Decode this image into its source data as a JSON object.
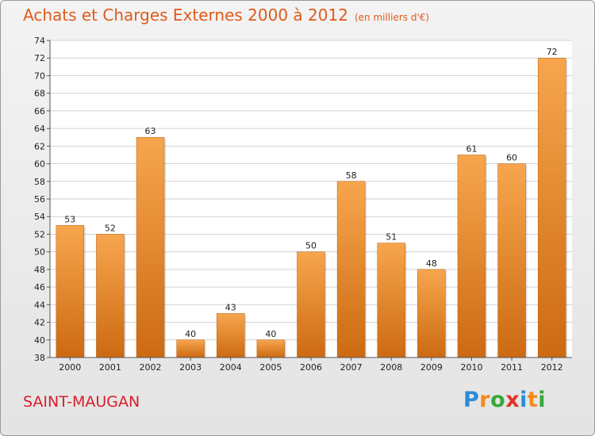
{
  "header": {
    "title": "Achats et Charges Externes 2000 à 2012",
    "unit": "(en milliers d'€)"
  },
  "footer": {
    "commune": "SAINT-MAUGAN",
    "logo": {
      "letters": [
        {
          "char": "P",
          "color": "#2a8bd8"
        },
        {
          "char": "r",
          "color": "#f28a1c"
        },
        {
          "char": "o",
          "color": "#37a83a"
        },
        {
          "char": "x",
          "color": "#e0322a"
        },
        {
          "char": "i",
          "color": "#2a8bd8"
        },
        {
          "char": "t",
          "color": "#f28a1c"
        },
        {
          "char": "i",
          "color": "#37a83a"
        }
      ]
    }
  },
  "colors": {
    "bar_top": "#f7a64e",
    "bar_bottom": "#cc6a12",
    "grid": "#d2d2d2"
  },
  "chart_data": {
    "type": "bar",
    "categories": [
      "2000",
      "2001",
      "2002",
      "2003",
      "2004",
      "2005",
      "2006",
      "2007",
      "2008",
      "2009",
      "2010",
      "2011",
      "2012"
    ],
    "values": [
      53,
      52,
      63,
      40,
      43,
      40,
      50,
      58,
      51,
      48,
      61,
      60,
      72
    ],
    "title": "Achats et Charges Externes 2000 à 2012",
    "subtitle": "(en milliers d'€)",
    "xlabel": "",
    "ylabel": "",
    "ylim": [
      38,
      74
    ],
    "ytick_step": 2,
    "grid": true,
    "legend": "none"
  }
}
